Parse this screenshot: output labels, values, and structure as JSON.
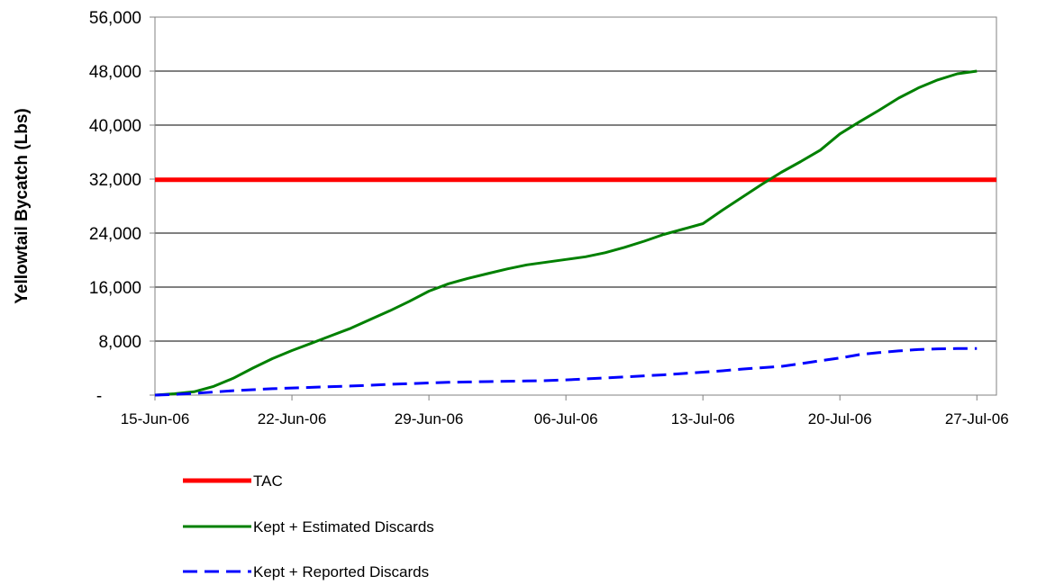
{
  "chart_data": {
    "type": "line",
    "title": "",
    "xlabel": "",
    "ylabel": "Yellowtail Bycatch (Lbs)",
    "ylim": [
      0,
      56000
    ],
    "y_ticks": [
      0,
      8000,
      16000,
      24000,
      32000,
      40000,
      48000,
      56000
    ],
    "y_tick_labels": [
      "-",
      "8,000",
      "16,000",
      "24,000",
      "32,000",
      "40,000",
      "48,000",
      "56,000"
    ],
    "xlim": [
      "2006-06-15",
      "2006-07-28"
    ],
    "x_ticks": [
      "2006-06-15",
      "2006-06-22",
      "2006-06-29",
      "2006-07-06",
      "2006-07-13",
      "2006-07-20",
      "2006-07-27"
    ],
    "x_tick_labels": [
      "15-Jun-06",
      "22-Jun-06",
      "29-Jun-06",
      "06-Jul-06",
      "13-Jul-06",
      "20-Jul-06",
      "27-Jul-06"
    ],
    "grid": "horizontal",
    "legend_position": "bottom",
    "series": [
      {
        "name": "TAC",
        "color": "#ff0000",
        "style": "solid",
        "x": [
          "2006-06-15",
          "2006-07-28"
        ],
        "y": [
          31900,
          31900
        ]
      },
      {
        "name": "Kept + Estimated Discards",
        "color": "#008000",
        "style": "solid",
        "x": [
          "2006-06-15",
          "2006-06-16",
          "2006-06-17",
          "2006-06-18",
          "2006-06-19",
          "2006-06-20",
          "2006-06-21",
          "2006-06-22",
          "2006-06-23",
          "2006-06-24",
          "2006-06-25",
          "2006-06-26",
          "2006-06-27",
          "2006-06-28",
          "2006-06-29",
          "2006-06-30",
          "2006-07-01",
          "2006-07-02",
          "2006-07-03",
          "2006-07-04",
          "2006-07-05",
          "2006-07-06",
          "2006-07-07",
          "2006-07-08",
          "2006-07-09",
          "2006-07-10",
          "2006-07-11",
          "2006-07-12",
          "2006-07-13",
          "2006-07-14",
          "2006-07-15",
          "2006-07-16",
          "2006-07-17",
          "2006-07-18",
          "2006-07-19",
          "2006-07-20",
          "2006-07-21",
          "2006-07-22",
          "2006-07-23",
          "2006-07-24",
          "2006-07-25",
          "2006-07-26",
          "2006-07-27"
        ],
        "y": [
          0,
          200,
          500,
          1300,
          2500,
          4000,
          5400,
          6600,
          7700,
          8800,
          9900,
          11200,
          12500,
          13900,
          15400,
          16500,
          17300,
          18000,
          18700,
          19300,
          19700,
          20100,
          20500,
          21100,
          21900,
          22800,
          23800,
          24600,
          25400,
          27400,
          29300,
          31200,
          33000,
          34600,
          36300,
          38700,
          40500,
          42200,
          44000,
          45500,
          46700,
          47600,
          48000
        ]
      },
      {
        "name": "Kept + Reported Discards",
        "color": "#0000ff",
        "style": "dashed",
        "x": [
          "2006-06-15",
          "2006-06-16",
          "2006-06-17",
          "2006-06-18",
          "2006-06-19",
          "2006-06-20",
          "2006-06-21",
          "2006-06-22",
          "2006-06-23",
          "2006-06-24",
          "2006-06-25",
          "2006-06-26",
          "2006-06-27",
          "2006-06-28",
          "2006-06-29",
          "2006-06-30",
          "2006-07-01",
          "2006-07-02",
          "2006-07-03",
          "2006-07-04",
          "2006-07-05",
          "2006-07-06",
          "2006-07-07",
          "2006-07-08",
          "2006-07-09",
          "2006-07-10",
          "2006-07-11",
          "2006-07-12",
          "2006-07-13",
          "2006-07-14",
          "2006-07-15",
          "2006-07-16",
          "2006-07-17",
          "2006-07-18",
          "2006-07-19",
          "2006-07-20",
          "2006-07-21",
          "2006-07-22",
          "2006-07-23",
          "2006-07-24",
          "2006-07-25",
          "2006-07-26",
          "2006-07-27"
        ],
        "y": [
          0,
          100,
          250,
          450,
          650,
          800,
          950,
          1050,
          1150,
          1250,
          1350,
          1450,
          1600,
          1700,
          1800,
          1900,
          1950,
          2000,
          2050,
          2100,
          2150,
          2250,
          2400,
          2550,
          2700,
          2850,
          3000,
          3200,
          3400,
          3600,
          3850,
          4050,
          4250,
          4650,
          5100,
          5500,
          6000,
          6300,
          6550,
          6750,
          6850,
          6900,
          6900
        ]
      }
    ]
  }
}
